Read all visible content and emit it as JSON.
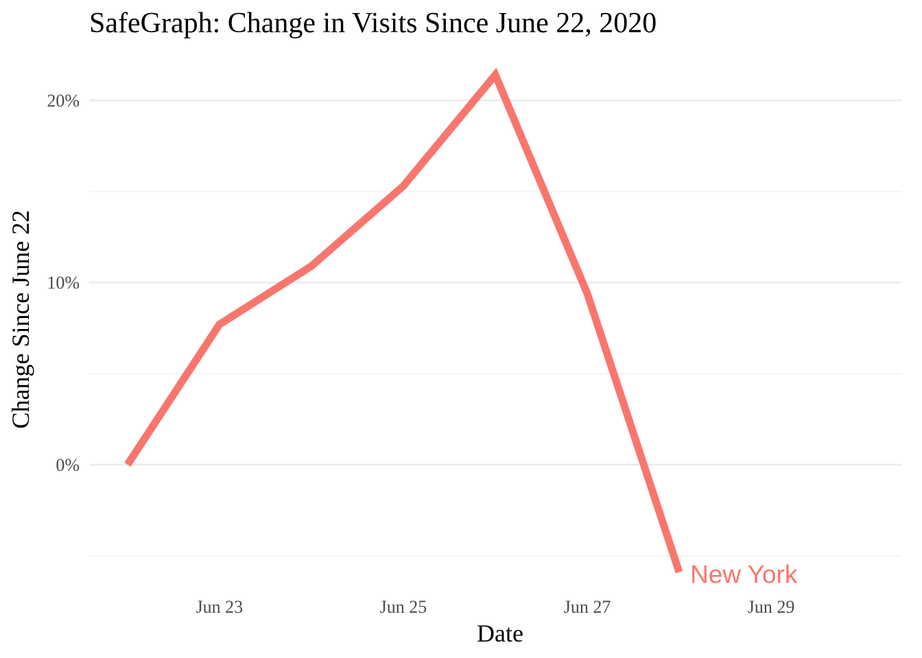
{
  "chart_data": {
    "type": "line",
    "title": "SafeGraph: Change in Visits Since June 22, 2020",
    "xlabel": "Date",
    "ylabel": "Change Since June 22",
    "x": [
      "2020-06-22",
      "2020-06-23",
      "2020-06-24",
      "2020-06-25",
      "2020-06-26",
      "2020-06-27",
      "2020-06-28"
    ],
    "series": [
      {
        "name": "New York",
        "color": "#F8766D",
        "values": [
          0.0,
          7.7,
          10.9,
          15.3,
          21.4,
          9.4,
          -5.9
        ]
      }
    ],
    "x_ticks": [
      {
        "value": "2020-06-23",
        "label": "Jun 23"
      },
      {
        "value": "2020-06-25",
        "label": "Jun 25"
      },
      {
        "value": "2020-06-27",
        "label": "Jun 27"
      },
      {
        "value": "2020-06-29",
        "label": "Jun 29"
      }
    ],
    "y_ticks": [
      {
        "value": 0,
        "label": "0%"
      },
      {
        "value": 10,
        "label": "10%"
      },
      {
        "value": 20,
        "label": "20%"
      }
    ],
    "y_minor_ticks": [
      -5,
      5,
      15
    ],
    "xlim": [
      "2020-06-21 14:00",
      "2020-06-30 10:00"
    ],
    "ylim": [
      -6.7,
      22.5
    ],
    "grid": true,
    "legend": "none; series labeled directly at the end of the line"
  }
}
